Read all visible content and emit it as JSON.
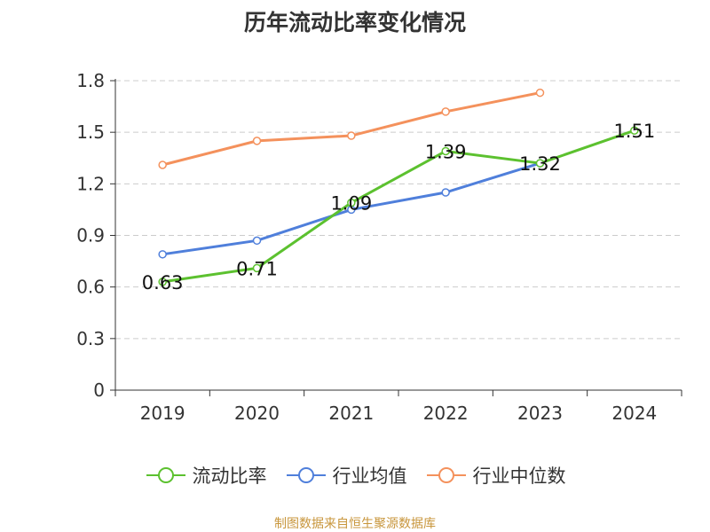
{
  "chart_data": {
    "type": "line",
    "title": "历年流动比率变化情况",
    "source_label": "制图数据来自恒生聚源数据库",
    "categories": [
      "2019",
      "2020",
      "2021",
      "2022",
      "2023",
      "2024"
    ],
    "ylim": [
      0,
      1.8
    ],
    "yticks": [
      0,
      0.3,
      0.6,
      0.9,
      1.2,
      1.5,
      1.8
    ],
    "grid": true,
    "legend_position": "bottom",
    "series": [
      {
        "name": "流动比率",
        "color": "#5cc12f",
        "values": [
          0.63,
          0.71,
          1.09,
          1.39,
          1.32,
          1.51
        ],
        "labels": [
          "0.63",
          "0.71",
          "1.09",
          "1.39",
          "1.32",
          "1.51"
        ]
      },
      {
        "name": "行业均值",
        "color": "#4f7fdb",
        "values": [
          0.79,
          0.87,
          1.05,
          1.15,
          1.32,
          null
        ]
      },
      {
        "name": "行业中位数",
        "color": "#f4915c",
        "values": [
          1.31,
          1.45,
          1.48,
          1.62,
          1.73,
          null
        ]
      }
    ]
  }
}
